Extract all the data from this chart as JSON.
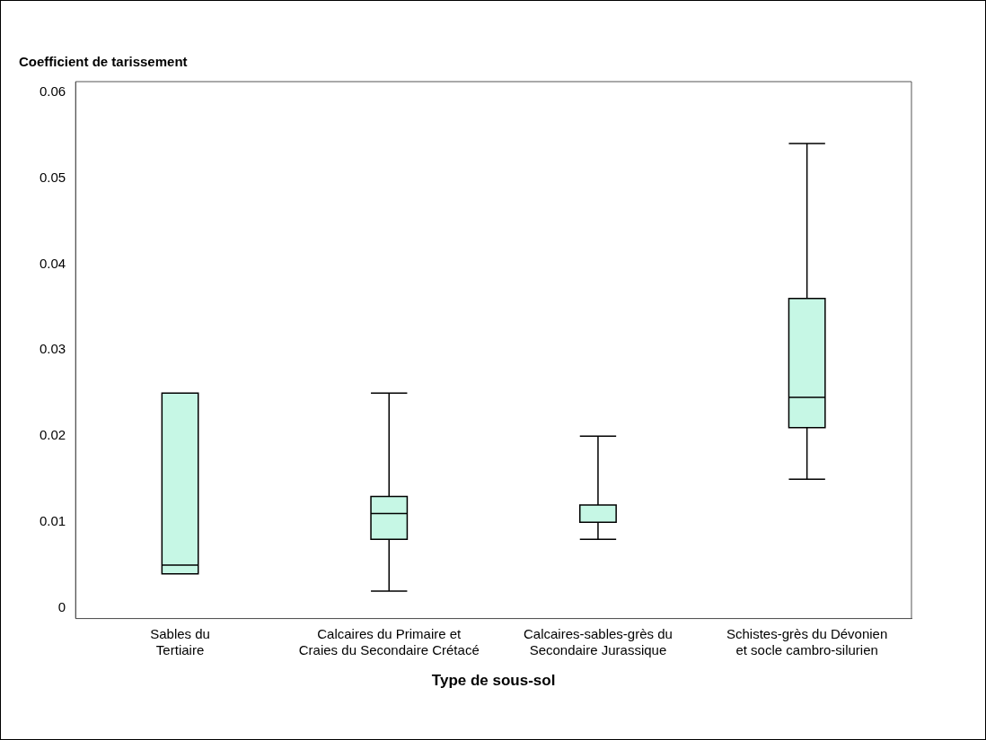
{
  "chart_data": {
    "type": "box",
    "ylabel": "Coefficient de tarissement",
    "xlabel": "Type de sous-sol",
    "categories": [
      "Sables du\nTertiaire",
      "Calcaires du Primaire et\nCraies du Secondaire Crétacé",
      "Calcaires-sables-grès du\nSecondaire Jurassique",
      "Schistes-grès du Dévonien\net socle cambro-silurien"
    ],
    "color": "#c6f7e5",
    "boxes": [
      {
        "low": 0.004,
        "q1": 0.004,
        "median": 0.005,
        "q3": 0.025,
        "high": 0.025
      },
      {
        "low": 0.002,
        "q1": 0.008,
        "median": 0.011,
        "q3": 0.013,
        "high": 0.025
      },
      {
        "low": 0.008,
        "q1": 0.01,
        "median": 0.01,
        "q3": 0.012,
        "high": 0.02
      },
      {
        "low": 0.015,
        "q1": 0.021,
        "median": 0.0245,
        "q3": 0.036,
        "high": 0.054
      }
    ],
    "ylim": [
      -0.0012,
      0.0612
    ],
    "yticks": [
      0,
      0.01,
      0.02,
      0.03,
      0.04,
      0.05,
      0.06
    ],
    "grid": false,
    "legend": false
  }
}
